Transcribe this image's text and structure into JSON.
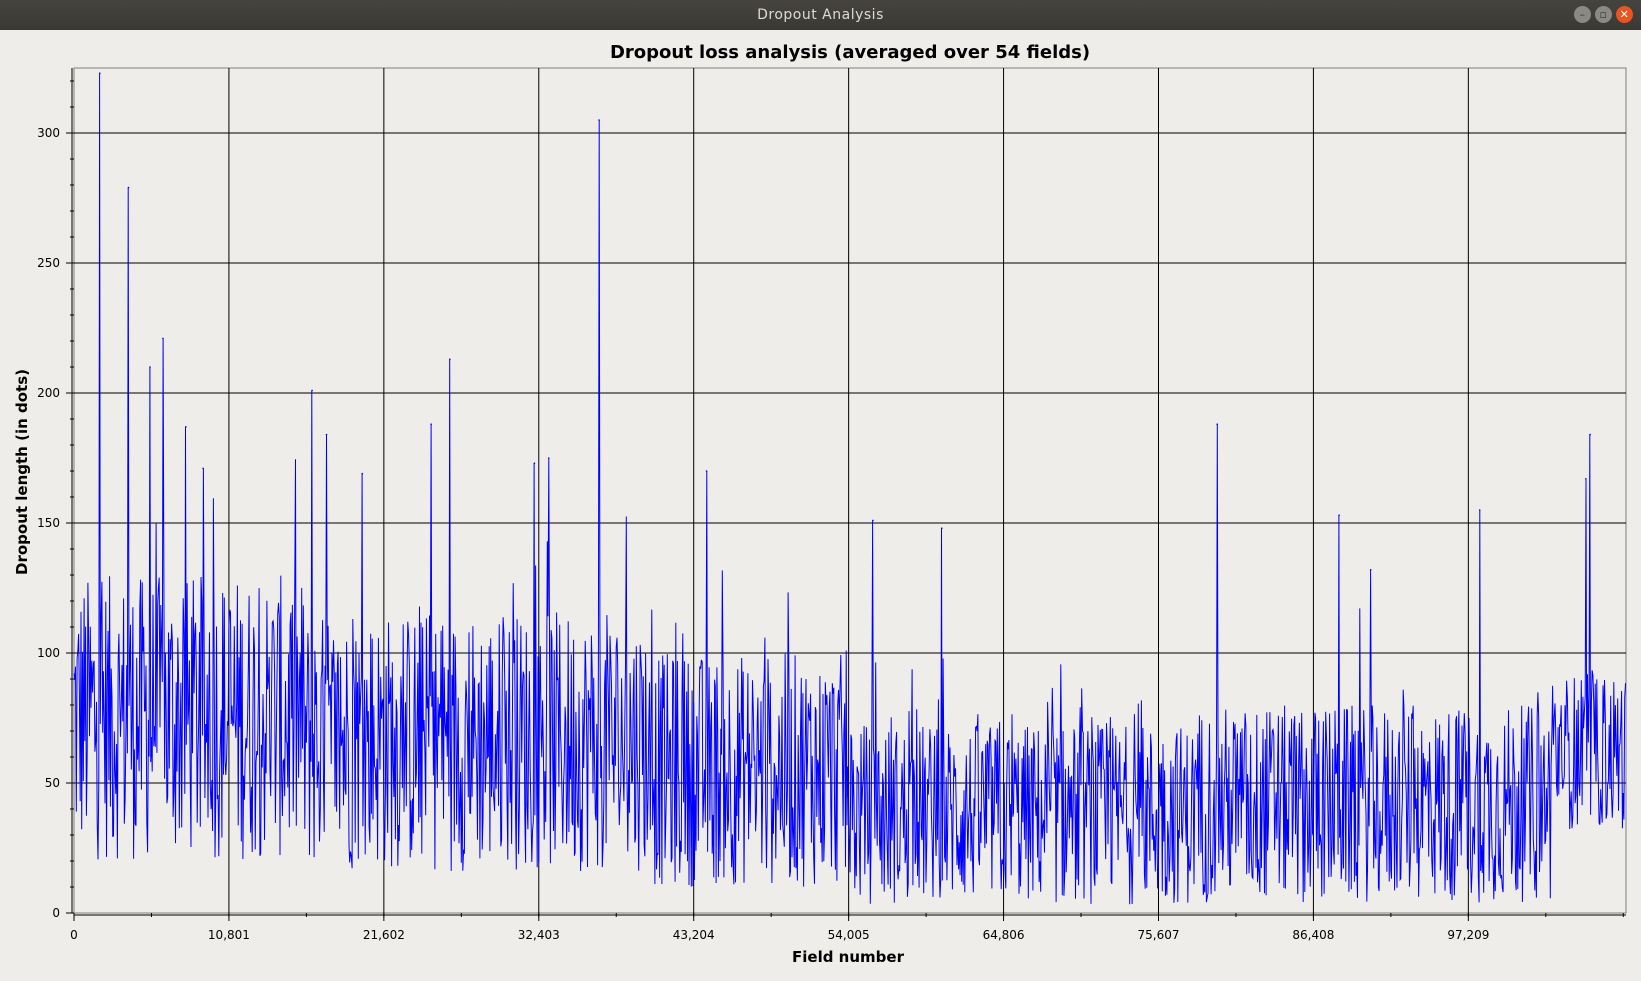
{
  "window": {
    "title": "Dropout Analysis",
    "buttons": [
      "minimize",
      "maximize",
      "close"
    ]
  },
  "colors": {
    "series": "#0000ff",
    "grid": "#000000",
    "background": "#efedea"
  },
  "chart_data": {
    "type": "line",
    "title": "Dropout loss analysis (averaged over 54 fields)",
    "xlabel": "Field number",
    "ylabel": "Dropout length (in dots)",
    "xlim": [
      0,
      108200
    ],
    "ylim": [
      0,
      325
    ],
    "x_ticks": [
      0,
      10801,
      21602,
      32403,
      43204,
      54005,
      64806,
      75607,
      86408,
      97209
    ],
    "x_tick_labels": [
      "0",
      "10,801",
      "21,602",
      "32,403",
      "43,204",
      "54,005",
      "64,806",
      "75,607",
      "86,408",
      "97,209"
    ],
    "y_ticks": [
      0,
      50,
      100,
      150,
      200,
      250,
      300
    ],
    "y_tick_labels": [
      "0",
      "50",
      "100",
      "150",
      "200",
      "250",
      "300"
    ],
    "grid": true,
    "series": [
      {
        "x_step": 54,
        "peaks": [
          {
            "x": 1800,
            "y": 323
          },
          {
            "x": 3800,
            "y": 279
          },
          {
            "x": 5300,
            "y": 210
          },
          {
            "x": 6200,
            "y": 221
          },
          {
            "x": 7800,
            "y": 187
          },
          {
            "x": 9000,
            "y": 171
          },
          {
            "x": 16600,
            "y": 201
          },
          {
            "x": 17600,
            "y": 184
          },
          {
            "x": 20100,
            "y": 169
          },
          {
            "x": 24900,
            "y": 188
          },
          {
            "x": 26200,
            "y": 213
          },
          {
            "x": 32100,
            "y": 173
          },
          {
            "x": 33100,
            "y": 175
          },
          {
            "x": 36600,
            "y": 305
          },
          {
            "x": 44100,
            "y": 170
          },
          {
            "x": 55700,
            "y": 151
          },
          {
            "x": 60500,
            "y": 148
          },
          {
            "x": 79700,
            "y": 188
          },
          {
            "x": 88200,
            "y": 153
          },
          {
            "x": 90400,
            "y": 132
          },
          {
            "x": 98000,
            "y": 155
          },
          {
            "x": 105700,
            "y": 184
          },
          {
            "x": 105400,
            "y": 167
          }
        ],
        "segments": [
          {
            "x0": 0,
            "x1": 16000,
            "mean": 75,
            "spread": 55
          },
          {
            "x0": 16000,
            "x1": 40000,
            "mean": 66,
            "spread": 50
          },
          {
            "x0": 40000,
            "x1": 54000,
            "mean": 55,
            "spread": 45
          },
          {
            "x0": 54000,
            "x1": 78000,
            "mean": 38,
            "spread": 35
          },
          {
            "x0": 78000,
            "x1": 103000,
            "mean": 42,
            "spread": 38
          },
          {
            "x0": 103000,
            "x1": 108200,
            "mean": 62,
            "spread": 30
          }
        ]
      }
    ]
  }
}
